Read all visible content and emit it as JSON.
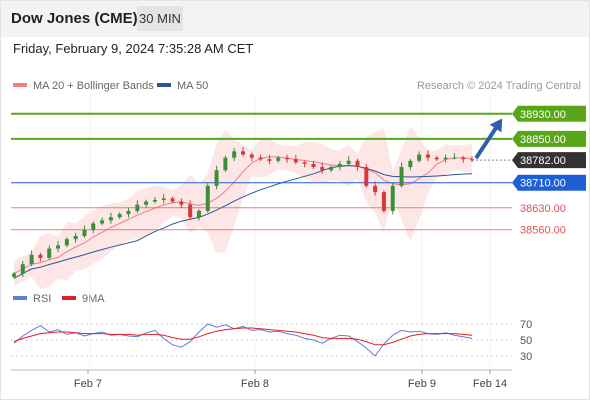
{
  "header": {
    "title": "Dow Jones (CME)",
    "interval": "30 MIN"
  },
  "datetime": "Friday, February 9, 2024 7:35:28 AM CET",
  "legend": {
    "ma20": {
      "label": "MA 20 + Bollinger Bands",
      "color": "#f08080"
    },
    "ma50": {
      "label": "MA 50",
      "color": "#2f5597"
    }
  },
  "credit": "Research © 2024 Trading Central",
  "chart_data": {
    "type": "candlestick",
    "ylim": [
      38390,
      38990
    ],
    "x_ticks": [
      "Feb 7",
      "Feb 8",
      "Feb 9",
      "Feb 14"
    ],
    "levels": [
      {
        "label": "38930.00",
        "value": 38930,
        "type": "resistance",
        "color": "#58a618"
      },
      {
        "label": "38850.00",
        "value": 38850,
        "type": "resistance",
        "color": "#58a618"
      },
      {
        "label": "38782.00",
        "value": 38782,
        "type": "current",
        "color": "#333333"
      },
      {
        "label": "38710.00",
        "value": 38710,
        "type": "pivot",
        "color": "#1f5fd6"
      },
      {
        "label": "38630.00",
        "value": 38630,
        "type": "support",
        "color": "#e05050"
      },
      {
        "label": "38560.00",
        "value": 38560,
        "type": "support",
        "color": "#e05050"
      }
    ],
    "close_series": [
      38420,
      38450,
      38480,
      38470,
      38500,
      38510,
      38530,
      38540,
      38560,
      38580,
      38590,
      38600,
      38610,
      38620,
      38640,
      38650,
      38655,
      38660,
      38650,
      38640,
      38600,
      38620,
      38700,
      38750,
      38790,
      38810,
      38800,
      38790,
      38785,
      38780,
      38790,
      38785,
      38775,
      38770,
      38760,
      38750,
      38760,
      38770,
      38780,
      38760,
      38700,
      38680,
      38620,
      38700,
      38760,
      38780,
      38800,
      38790,
      38785,
      38790,
      38790,
      38785,
      38782
    ],
    "annotation": "projected move toward 38930.00"
  },
  "rsi": {
    "legend_rsi": {
      "label": "RSI",
      "color": "#5b7fd6"
    },
    "legend_ma": {
      "label": "9MA",
      "color": "#e02020"
    },
    "levels": [
      "70",
      "50",
      "30"
    ],
    "ylim": [
      20,
      80
    ],
    "rsi_values": [
      46,
      55,
      62,
      68,
      60,
      63,
      57,
      59,
      55,
      58,
      60,
      56,
      57,
      55,
      54,
      59,
      62,
      52,
      44,
      41,
      48,
      60,
      70,
      66,
      69,
      64,
      67,
      62,
      63,
      60,
      61,
      58,
      56,
      52,
      50,
      46,
      52,
      56,
      55,
      48,
      40,
      30,
      45,
      56,
      62,
      60,
      61,
      58,
      57,
      59,
      56,
      54,
      52
    ],
    "ma_values": [
      48,
      52,
      55,
      58,
      59,
      60,
      60,
      59,
      58,
      58,
      58,
      57,
      57,
      57,
      56,
      57,
      57,
      56,
      53,
      51,
      51,
      54,
      58,
      61,
      63,
      64,
      65,
      65,
      64,
      63,
      62,
      61,
      60,
      58,
      56,
      53,
      52,
      52,
      52,
      51,
      48,
      44,
      44,
      47,
      51,
      55,
      57,
      58,
      58,
      58,
      58,
      57,
      56
    ]
  }
}
